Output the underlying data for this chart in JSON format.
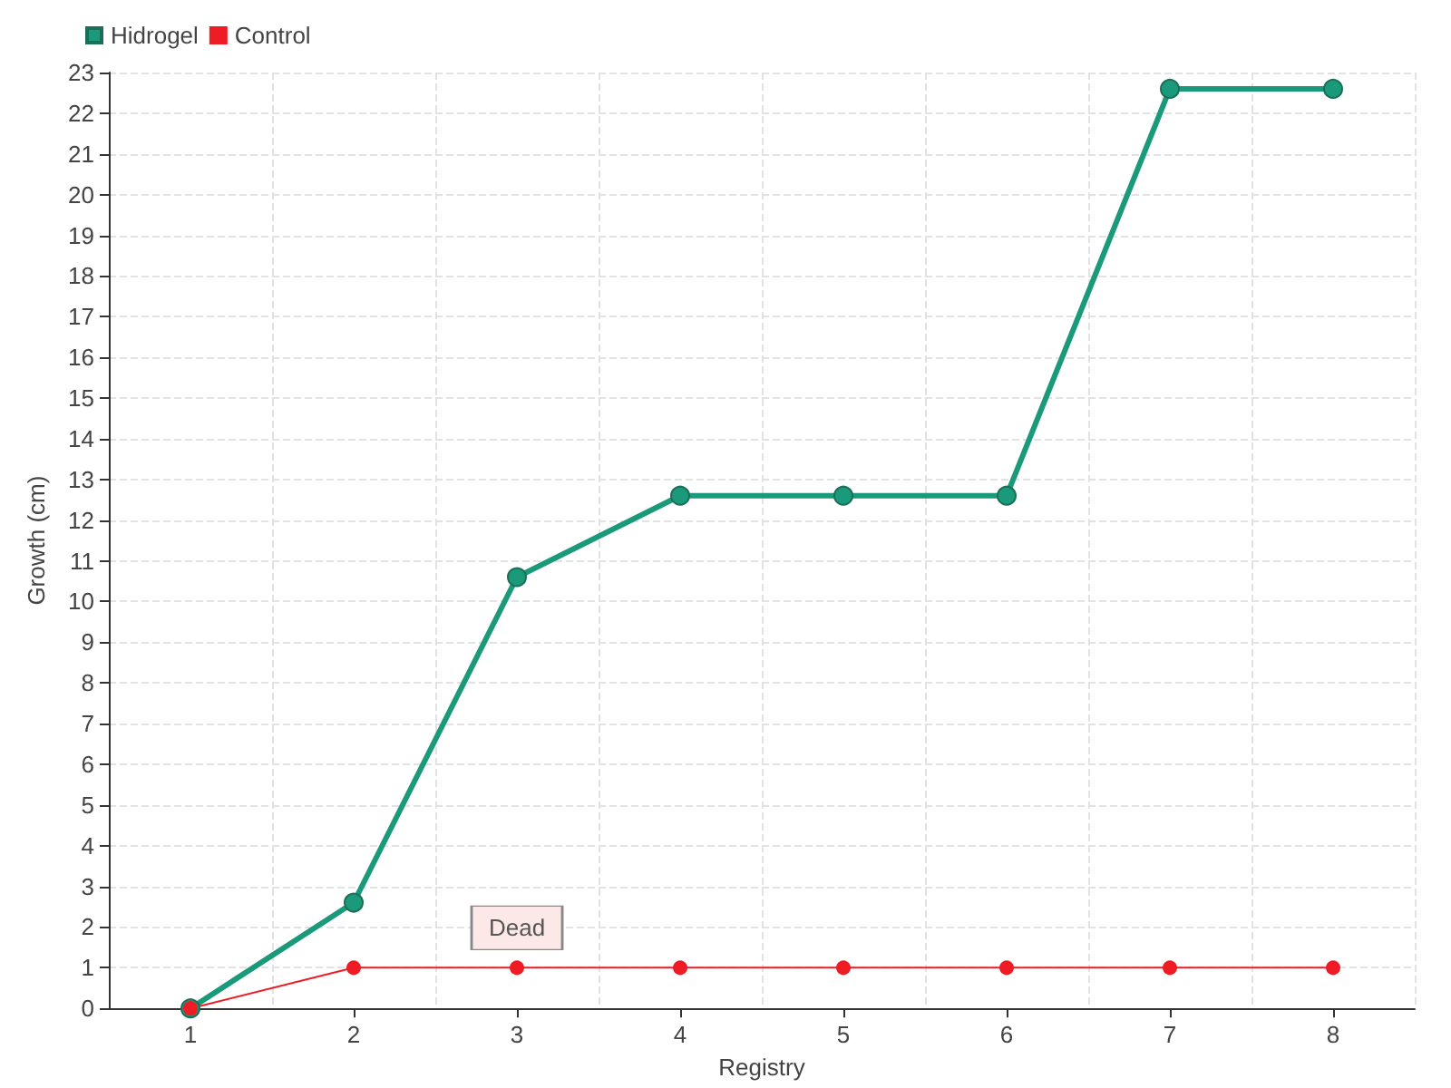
{
  "chart_data": {
    "type": "line",
    "xlabel": "Registry",
    "ylabel": "Growth (cm)",
    "categories": [
      "1",
      "2",
      "3",
      "4",
      "5",
      "6",
      "7",
      "8"
    ],
    "series": [
      {
        "name": "Hidrogel",
        "color": "#1a9a7a",
        "values": [
          0,
          2.6,
          10.6,
          12.6,
          12.6,
          12.6,
          22.6,
          22.6
        ]
      },
      {
        "name": "Control",
        "color": "#ee1c25",
        "values": [
          0,
          1,
          1,
          1,
          1,
          1,
          1,
          1
        ]
      }
    ],
    "ylim": [
      0,
      23
    ],
    "yticks": [
      0,
      1,
      2,
      3,
      4,
      5,
      6,
      7,
      8,
      9,
      10,
      11,
      12,
      13,
      14,
      15,
      16,
      17,
      18,
      19,
      20,
      21,
      22,
      23
    ],
    "grid": true,
    "legend": "top left",
    "marker": "circle",
    "line_style": "solid",
    "annotations": [
      {
        "text": "Dead",
        "x": "3",
        "y": 1
      }
    ]
  }
}
